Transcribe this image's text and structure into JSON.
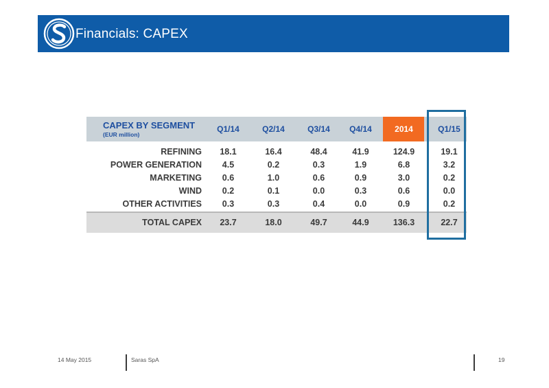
{
  "header": {
    "title": "Financials: CAPEX",
    "logo_icon": "saras-logo-icon",
    "background_color": "#0f5ca8"
  },
  "table": {
    "header_label": "CAPEX BY SEGMENT",
    "header_sublabel": "(EUR million)",
    "columns": [
      "Q1/14",
      "Q2/14",
      "Q3/14",
      "Q4/14",
      "2014",
      "Q1/15"
    ],
    "highlight_column_color": "#f26a21",
    "rows": [
      {
        "label": "REFINING",
        "values": [
          "18.1",
          "16.4",
          "48.4",
          "41.9",
          "124.9",
          "19.1"
        ]
      },
      {
        "label": "POWER GENERATION",
        "values": [
          "4.5",
          "0.2",
          "0.3",
          "1.9",
          "6.8",
          "3.2"
        ]
      },
      {
        "label": "MARKETING",
        "values": [
          "0.6",
          "1.0",
          "0.6",
          "0.9",
          "3.0",
          "0.2"
        ]
      },
      {
        "label": "WIND",
        "values": [
          "0.2",
          "0.1",
          "0.0",
          "0.3",
          "0.6",
          "0.0"
        ]
      },
      {
        "label": "OTHER ACTIVITIES",
        "values": [
          "0.3",
          "0.3",
          "0.4",
          "0.0",
          "0.9",
          "0.2"
        ]
      }
    ],
    "total": {
      "label": "TOTAL CAPEX",
      "values": [
        "23.7",
        "18.0",
        "49.7",
        "44.9",
        "136.3",
        "22.7"
      ]
    }
  },
  "footer": {
    "date": "14 May 2015",
    "company": "Saras SpA",
    "page_number": "19"
  }
}
